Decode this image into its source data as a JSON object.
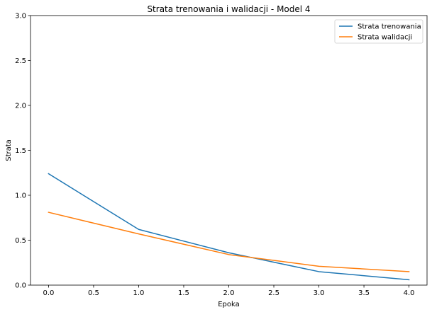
{
  "chart_data": {
    "type": "line",
    "title": "Strata trenowania i walidacji - Model 4",
    "xlabel": "Epoka",
    "ylabel": "Strata",
    "x": [
      0,
      1,
      2,
      3,
      4
    ],
    "xlim": [
      -0.2,
      4.2
    ],
    "ylim": [
      0,
      3.0
    ],
    "xticks": [
      "0.0",
      "0.5",
      "1.0",
      "1.5",
      "2.0",
      "2.5",
      "3.0",
      "3.5",
      "4.0"
    ],
    "yticks": [
      "0.0",
      "0.5",
      "1.0",
      "1.5",
      "2.0",
      "2.5",
      "3.0"
    ],
    "grid": false,
    "legend_position": "top-right",
    "series": [
      {
        "name": "Strata trenowania",
        "color": "#1f77b4",
        "values": [
          1.24,
          0.62,
          0.36,
          0.15,
          0.06
        ]
      },
      {
        "name": "Strata walidacji",
        "color": "#ff7f0e",
        "values": [
          0.81,
          0.57,
          0.34,
          0.21,
          0.15
        ]
      }
    ]
  }
}
